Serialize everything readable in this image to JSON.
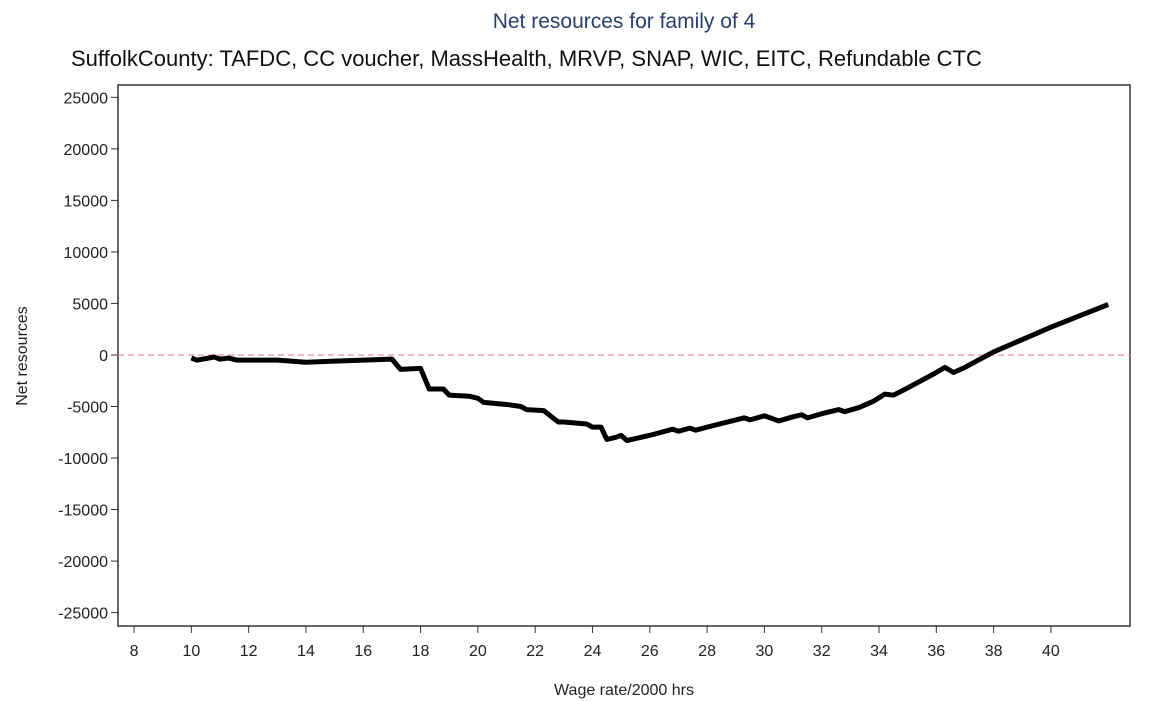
{
  "chart_data": {
    "type": "line",
    "title": "Net resources for family of 4",
    "subtitle": "SuffolkCounty: TAFDC, CC voucher, MassHealth, MRVP, SNAP, WIC, EITC, Refundable CTC",
    "xlabel": "Wage rate/2000 hrs",
    "ylabel": "Net resources",
    "x": [
      10.0,
      10.2,
      10.8,
      11.0,
      11.3,
      11.6,
      12.3,
      13.0,
      14.0,
      15.0,
      16.0,
      17.0,
      17.3,
      18.0,
      18.3,
      18.8,
      19.0,
      19.7,
      20.0,
      20.2,
      21.0,
      21.5,
      21.7,
      22.3,
      22.8,
      23.0,
      23.8,
      24.0,
      24.3,
      24.5,
      24.8,
      25.0,
      25.2,
      26.0,
      26.8,
      27.0,
      27.4,
      27.6,
      28.0,
      29.0,
      29.3,
      29.5,
      30.0,
      30.5,
      31.0,
      31.3,
      31.5,
      32.0,
      32.6,
      32.8,
      33.3,
      33.8,
      34.2,
      34.5,
      35.0,
      36.0,
      36.3,
      36.6,
      37.0,
      38.0,
      39.0,
      40.0,
      41.0,
      42.0
    ],
    "values": [
      -300,
      -500,
      -200,
      -400,
      -300,
      -500,
      -500,
      -500,
      -700,
      -600,
      -500,
      -400,
      -1400,
      -1300,
      -3300,
      -3300,
      -3900,
      -4000,
      -4200,
      -4600,
      -4800,
      -5000,
      -5300,
      -5400,
      -6500,
      -6500,
      -6700,
      -7000,
      -7000,
      -8200,
      -8000,
      -7800,
      -8300,
      -7800,
      -7200,
      -7400,
      -7100,
      -7300,
      -7000,
      -6300,
      -6100,
      -6300,
      -5900,
      -6400,
      -6000,
      -5800,
      -6100,
      -5700,
      -5300,
      -5500,
      -5100,
      -4500,
      -3800,
      -3900,
      -3200,
      -1700,
      -1200,
      -1700,
      -1200,
      300,
      1500,
      2700,
      3800,
      4900
    ],
    "color": "#000000",
    "hline": 0,
    "hline_color": "#e8a0c0",
    "xlim": [
      7.44,
      42.76
    ],
    "ylim": [
      -26300,
      26200
    ],
    "xticks": [
      8,
      10,
      12,
      14,
      16,
      18,
      20,
      22,
      24,
      26,
      28,
      30,
      32,
      34,
      36,
      38,
      40
    ],
    "yticks": [
      -25000,
      -20000,
      -15000,
      -10000,
      -5000,
      0,
      5000,
      10000,
      15000,
      20000,
      25000
    ]
  }
}
